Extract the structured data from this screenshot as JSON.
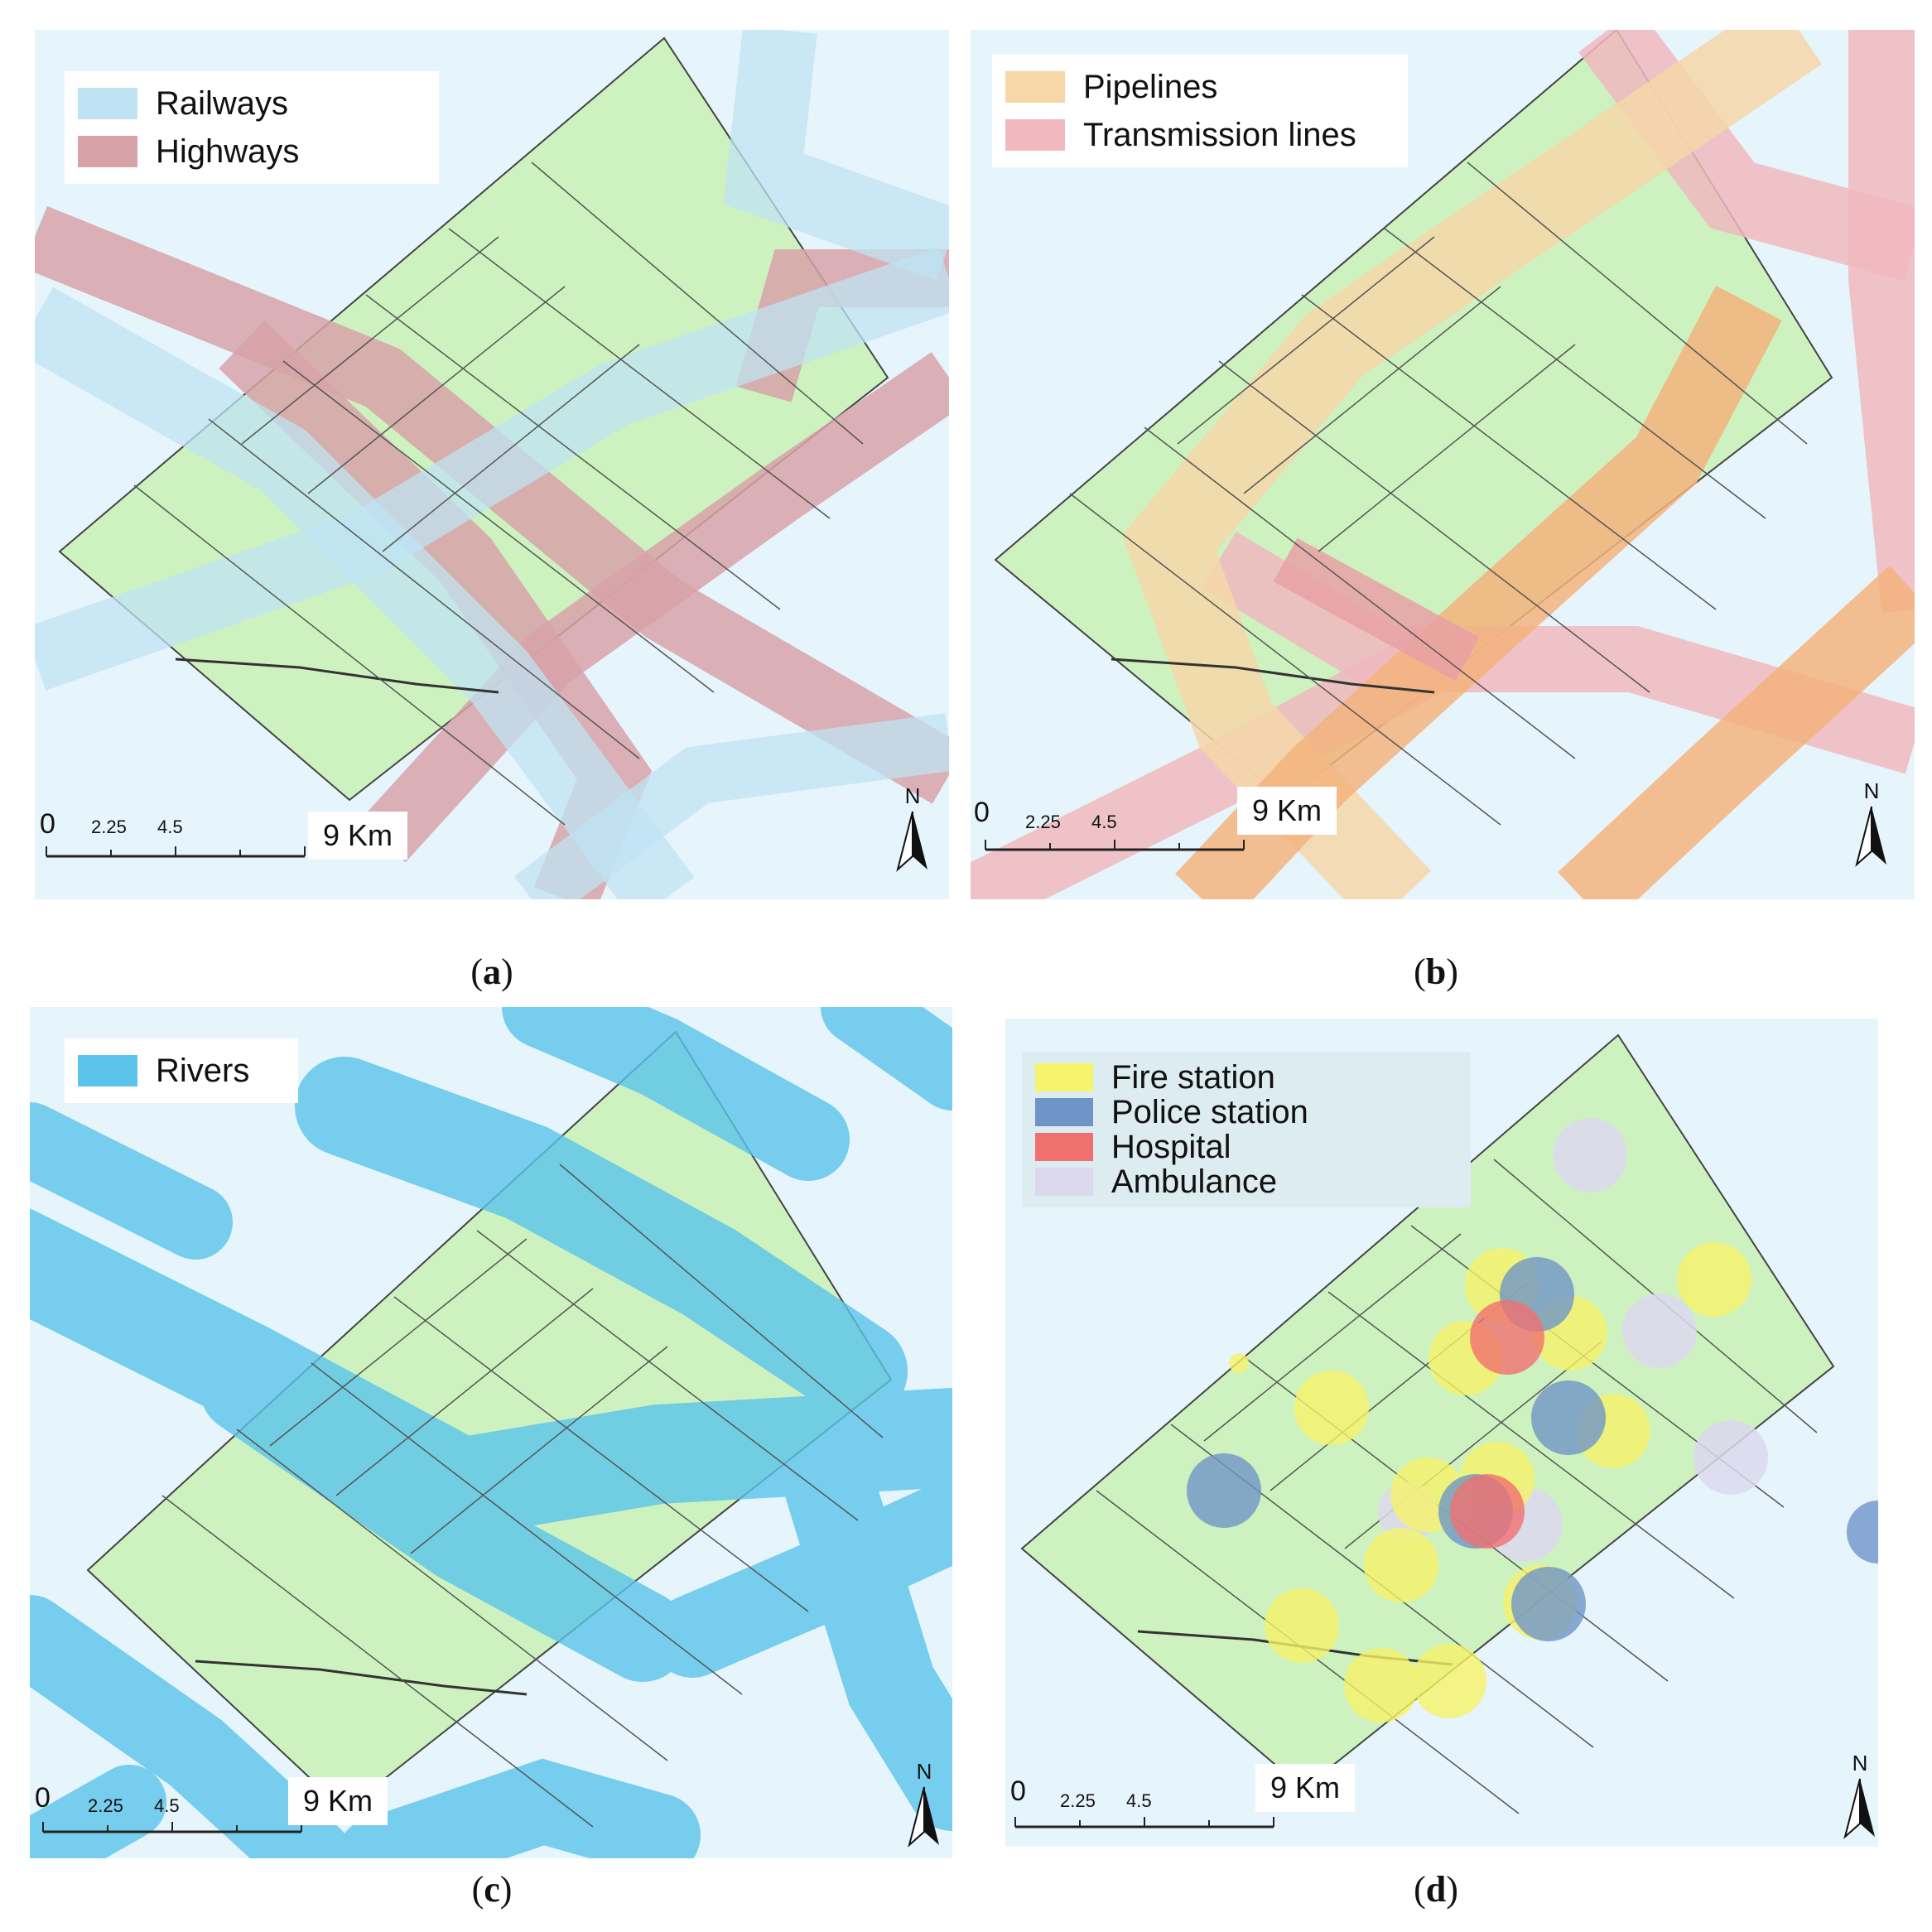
{
  "panels": {
    "a": {
      "caption_letter": "a",
      "legend": [
        {
          "label": "Railways",
          "color": "#bfe3f3"
        },
        {
          "label": "Highways",
          "color": "#d7a2a8"
        }
      ]
    },
    "b": {
      "caption_letter": "b",
      "legend": [
        {
          "label": "Pipelines",
          "color": "#f5d7a8"
        },
        {
          "label": "Transmission lines",
          "color": "#f0b9be"
        }
      ]
    },
    "c": {
      "caption_letter": "c",
      "legend": [
        {
          "label": "Rivers",
          "color": "#5bc4ea"
        }
      ]
    },
    "d": {
      "caption_letter": "d",
      "legend": [
        {
          "label": "Fire station",
          "color": "#f7f36a"
        },
        {
          "label": "Police station",
          "color": "#6f95c8"
        },
        {
          "label": "Hospital",
          "color": "#f07070"
        },
        {
          "label": "Ambulance",
          "color": "#dcd9ef"
        }
      ]
    }
  },
  "scale_bar": {
    "zero": "0",
    "tick1": "2.25",
    "tick2": "4.5",
    "end": "9 Km"
  },
  "north_label": "N",
  "colors": {
    "land": "#cdf2bf",
    "water_bg": "#e6f4fb",
    "boundary": "#333333"
  }
}
